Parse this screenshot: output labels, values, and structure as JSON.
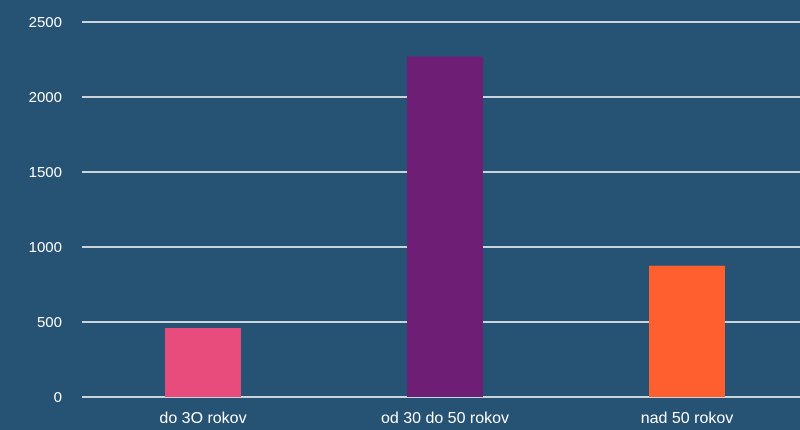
{
  "chart_data": {
    "type": "bar",
    "categories": [
      "do 3O rokov",
      "od 30 do 50 rokov",
      "nad 50 rokov"
    ],
    "values": [
      460,
      2270,
      875
    ],
    "bar_colors": [
      "#E84C7D",
      "#6E1E74",
      "#FF5F2E"
    ],
    "ylim": [
      0,
      2500
    ],
    "yticks": [
      0,
      500,
      1000,
      1500,
      2000,
      2500
    ],
    "title": "",
    "xlabel": "",
    "ylabel": "",
    "grid": true,
    "background": "#265273",
    "grid_color": "#FFFFFF",
    "text_color": "#FFFFFF"
  }
}
